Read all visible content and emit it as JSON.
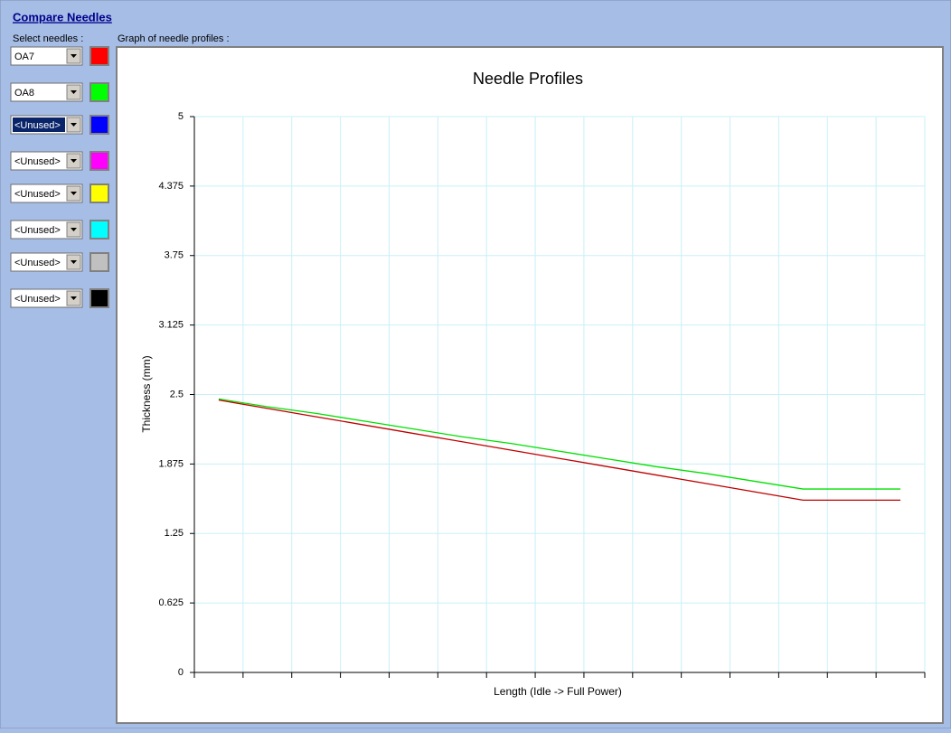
{
  "header": {
    "title": "Compare Needles",
    "select_label": "Select needles :",
    "graph_label": "Graph of needle profiles :"
  },
  "unused_selectors": [
    {
      "selection": "<Unused>",
      "color": "#0000ff"
    },
    {
      "selection": "<Unused>",
      "color": "#ff00ff"
    },
    {
      "selection": "<Unused>",
      "color": "#ffff00"
    },
    {
      "selection": "<Unused>",
      "color": "#00ffff"
    },
    {
      "selection": "<Unused>",
      "color": "#c0c0c0"
    },
    {
      "selection": "<Unused>",
      "color": "#000000"
    }
  ],
  "chart_data": {
    "type": "line",
    "title": "Needle Profiles",
    "x_label": "Length (Idle -> Full Power)",
    "y_label": "Thickness (mm)",
    "categories": [
      null,
      null,
      null,
      null,
      null,
      null,
      null,
      null,
      null,
      null,
      null,
      null,
      null,
      null,
      null
    ],
    "series": [
      {
        "name": "OA7",
        "color": "#ff0000",
        "line_color": "#c00000",
        "values": [
          2.45,
          2.375,
          2.3,
          2.225,
          2.15,
          2.075,
          2.0,
          1.925,
          1.85,
          1.775,
          1.7,
          1.625,
          1.55,
          1.55,
          1.55
        ]
      },
      {
        "name": "OA8",
        "color": "#00ff00",
        "line_color": "#00e000",
        "values": [
          2.46,
          2.39,
          2.33,
          2.26,
          2.19,
          2.12,
          2.06,
          1.99,
          1.92,
          1.85,
          1.79,
          1.72,
          1.65,
          1.65,
          1.65
        ]
      }
    ],
    "ylim": [
      0,
      5
    ],
    "yticks": [
      0,
      0.625,
      1.25,
      1.875,
      2.5,
      3.125,
      3.75,
      4.375,
      5
    ],
    "grid": true
  }
}
